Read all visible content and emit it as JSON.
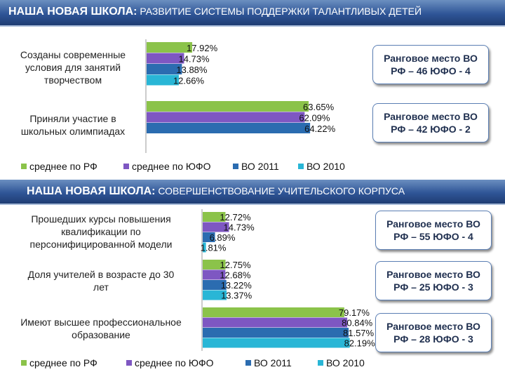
{
  "header1": {
    "bold": "НАША НОВАЯ ШКОЛА:",
    "rest": " РАЗВИТИЕ СИСТЕМЫ ПОДДЕРЖКИ ТАЛАНТЛИВЫХ ДЕТЕЙ"
  },
  "header2": {
    "bold": "НАША НОВАЯ ШКОЛА:",
    "rest": " СОВЕРШЕНСТВОВАНИЕ УЧИТЕЛЬСКОГО КОРПУСА"
  },
  "legend": [
    "среднее по РФ",
    "среднее по ЮФО",
    "ВО 2011",
    "ВО 2010"
  ],
  "colors": {
    "rf": "#8bc34a",
    "ufo": "#7e57c2",
    "vo2011": "#2b6cb0",
    "vo2010": "#29b6d6",
    "header": "#2f5597"
  },
  "rank_boxes": [
    "Ранговое место ВО РФ – 46  ЮФО - 4",
    "Ранговое место ВО РФ – 42  ЮФО - 2",
    "Ранговое место ВО РФ – 55  ЮФО - 4",
    "Ранговое место ВО РФ – 25   ЮФО - 3",
    "Ранговое место ВО РФ – 28   ЮФО - 3"
  ],
  "chart_data": [
    {
      "type": "bar",
      "orientation": "horizontal",
      "categories": [
        "Созданы современные условия для занятий творчеством",
        "Приняли участие в школьных олимпиадах"
      ],
      "series": [
        {
          "name": "среднее по РФ",
          "values": [
            17.92,
            63.65
          ]
        },
        {
          "name": "среднее по ЮФО",
          "values": [
            14.73,
            62.09
          ]
        },
        {
          "name": "ВО 2011",
          "values": [
            13.88,
            64.22
          ]
        },
        {
          "name": "ВО 2010",
          "values": [
            12.66,
            null
          ]
        }
      ],
      "labels": [
        [
          "17.92%",
          "14.73%",
          "13.88%",
          "12.66%"
        ],
        [
          "63.65%",
          "62.09%",
          "64.22%",
          null
        ]
      ],
      "legend": "bottom",
      "grid": false
    },
    {
      "type": "bar",
      "orientation": "horizontal",
      "categories": [
        "Прошедших курсы повышения квалификации по персонифицированной модели",
        "Доля учителей в возрасте до 30 лет",
        "Имеют высшее профессиональное образование"
      ],
      "series": [
        {
          "name": "среднее по РФ",
          "values": [
            12.72,
            12.75,
            79.17
          ]
        },
        {
          "name": "среднее по ЮФО",
          "values": [
            14.73,
            12.68,
            80.84
          ]
        },
        {
          "name": "ВО 2011",
          "values": [
            6.89,
            13.22,
            81.57
          ]
        },
        {
          "name": "ВО 2010",
          "values": [
            1.81,
            13.37,
            82.19
          ]
        }
      ],
      "labels": [
        [
          "12.72%",
          "14.73%",
          "6.89%",
          "1.81%"
        ],
        [
          "12.75%",
          "12.68%",
          "13.22%",
          "13.37%"
        ],
        [
          "79.17%",
          "80.84%",
          "81.57%",
          "82.19%"
        ]
      ],
      "legend": "bottom",
      "grid": false
    }
  ]
}
